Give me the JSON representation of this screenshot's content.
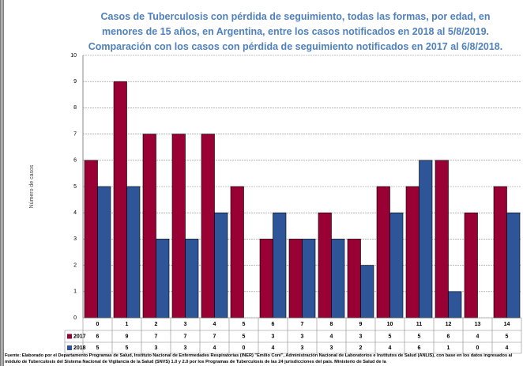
{
  "chart_data": {
    "type": "bar",
    "title": "Casos de Tuberculosis con pérdida de seguimiento, todas las formas, por edad, en menores de 15 años, en Argentina, entre los casos notificados en 2018 al 5/8/2019. Comparación con los casos con pérdida de seguimiento notificados en 2017 al 6/8/2018.",
    "y_label": "Número de casos",
    "categories": [
      "0",
      "1",
      "2",
      "3",
      "4",
      "5",
      "6",
      "7",
      "8",
      "9",
      "10",
      "11",
      "12",
      "13",
      "14"
    ],
    "series": [
      {
        "name": "2017",
        "color": "#990033",
        "values": [
          6,
          9,
          7,
          7,
          7,
          5,
          3,
          3,
          4,
          3,
          5,
          5,
          6,
          4,
          5
        ]
      },
      {
        "name": "2018",
        "color": "#2e5597",
        "values": [
          5,
          5,
          3,
          3,
          4,
          0,
          4,
          3,
          3,
          2,
          4,
          6,
          1,
          0,
          4
        ]
      }
    ],
    "ylim": [
      0,
      10
    ],
    "yticks": [
      0,
      1,
      2,
      3,
      4,
      5,
      6,
      7,
      8,
      9,
      10
    ],
    "grid": true,
    "source": "Fuente: Elaborado por el Departamento Programas de Salud, Instituto Nacional de Enfermedades Respiratorias (INER) \"Emilio Coni\", Administración Nacional de Laboratorios e Institutos de Salud (ANLIS), con base en los datos ingresados al módulo de Tuberculosis del Sistema Nacional de Vigilancia de la Salud (SNVS) 1.0 y 2.0 por los Programas de Tuberculosis de las 24 jurisdicciones del país. Ministerio de Salud de la"
  }
}
